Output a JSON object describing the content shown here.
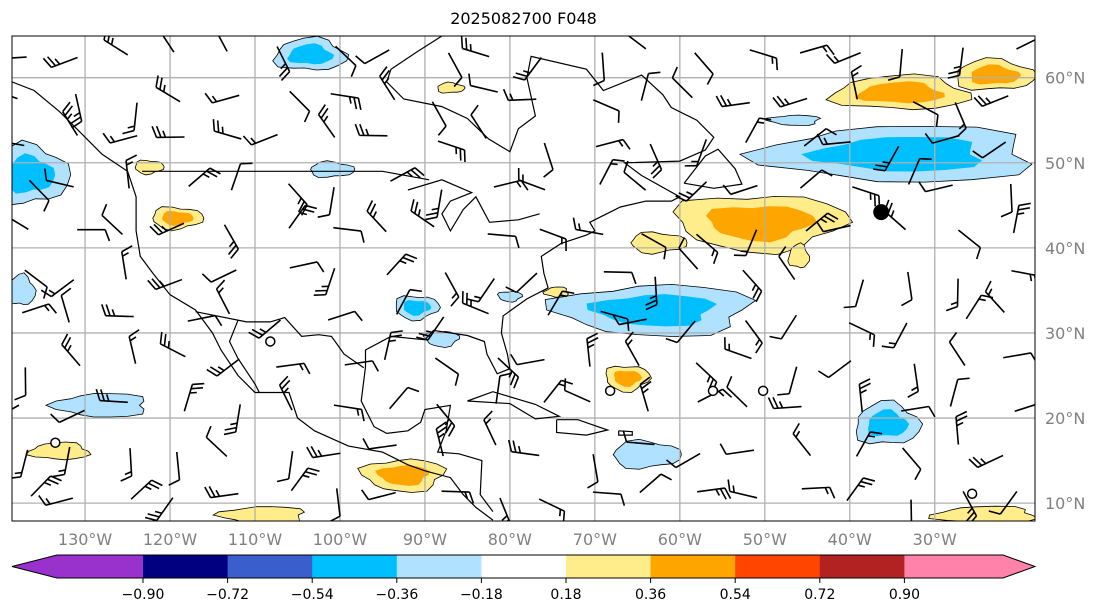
{
  "title": "2025082700 F048",
  "map": {
    "extent": {
      "lon_min": -138.6,
      "lon_max": -18.2,
      "lat_min": 7.9,
      "lat_max": 64.9
    },
    "lon_ticks": [
      {
        "value": -130,
        "label": "130°W"
      },
      {
        "value": -120,
        "label": "120°W"
      },
      {
        "value": -110,
        "label": "110°W"
      },
      {
        "value": -100,
        "label": "100°W"
      },
      {
        "value": -90,
        "label": "90°W"
      },
      {
        "value": -80,
        "label": "80°W"
      },
      {
        "value": -70,
        "label": "70°W"
      },
      {
        "value": -60,
        "label": "60°W"
      },
      {
        "value": -50,
        "label": "50°W"
      },
      {
        "value": -40,
        "label": "40°W"
      },
      {
        "value": -30,
        "label": "30°W"
      }
    ],
    "lat_ticks": [
      {
        "value": 60,
        "label": "60°N"
      },
      {
        "value": 50,
        "label": "50°N"
      },
      {
        "value": 40,
        "label": "40°N"
      },
      {
        "value": 30,
        "label": "30°N"
      },
      {
        "value": 20,
        "label": "20°N"
      },
      {
        "value": 10,
        "label": "10°N"
      }
    ],
    "anomaly_regions": [
      {
        "lon": -103.5,
        "lat": 62.7,
        "rlon": 4.2,
        "rlat": 1.9,
        "level": -0.36,
        "inner": -0.54
      },
      {
        "lon": -136.5,
        "lat": 48.6,
        "rlon": 4.5,
        "rlat": 3.5,
        "level": -0.36,
        "inner": -0.54
      },
      {
        "lon": -119.2,
        "lat": 43.5,
        "rlon": 3.0,
        "rlat": 1.3,
        "level": 0.36,
        "inner": 0.54
      },
      {
        "lon": -50.6,
        "lat": 43.0,
        "rlon": 10.0,
        "rlat": 3.3,
        "level": 0.36,
        "inner": 0.54
      },
      {
        "lon": -63.0,
        "lat": 32.7,
        "rlon": 11.5,
        "rlat": 3.0,
        "level": -0.36,
        "inner": -0.54
      },
      {
        "lon": -34.0,
        "lat": 51.0,
        "rlon": 16.0,
        "rlat": 3.3,
        "level": -0.36,
        "inner": -0.54
      },
      {
        "lon": -34.0,
        "lat": 58.2,
        "rlon": 8.0,
        "rlat": 2.0,
        "level": 0.36,
        "inner": 0.54
      },
      {
        "lon": -23.0,
        "lat": 60.3,
        "rlon": 4.7,
        "rlat": 1.8,
        "level": 0.36,
        "inner": 0.54
      },
      {
        "lon": -62.6,
        "lat": 40.6,
        "rlon": 3.3,
        "rlat": 1.2,
        "level": 0.36,
        "inner": null
      },
      {
        "lon": -66.2,
        "lat": 24.7,
        "rlon": 2.6,
        "rlat": 1.5,
        "level": 0.36,
        "inner": 0.54
      },
      {
        "lon": -92.5,
        "lat": 13.3,
        "rlon": 4.8,
        "rlat": 1.9,
        "level": 0.36,
        "inner": 0.54
      },
      {
        "lon": -128.0,
        "lat": 21.5,
        "rlon": 5.5,
        "rlat": 1.4,
        "level": -0.36,
        "inner": null
      },
      {
        "lon": -133.0,
        "lat": 16.1,
        "rlon": 3.5,
        "rlat": 1.0,
        "level": 0.36,
        "inner": null
      },
      {
        "lon": -35.6,
        "lat": 19.3,
        "rlon": 3.8,
        "rlat": 2.5,
        "level": -0.36,
        "inner": -0.54
      },
      {
        "lon": -64.0,
        "lat": 15.7,
        "rlon": 4.0,
        "rlat": 1.6,
        "level": -0.36,
        "inner": null
      },
      {
        "lon": -91.0,
        "lat": 33.0,
        "rlon": 2.6,
        "rlat": 1.4,
        "level": -0.36,
        "inner": -0.54
      },
      {
        "lon": -88.0,
        "lat": 29.3,
        "rlon": 2.0,
        "rlat": 0.9,
        "level": -0.36,
        "inner": null
      },
      {
        "lon": -109.0,
        "lat": 8.6,
        "rlon": 5.0,
        "rlat": 1.0,
        "level": 0.36,
        "inner": null
      },
      {
        "lon": -24.0,
        "lat": 8.6,
        "rlon": 6.0,
        "rlat": 1.0,
        "level": 0.36,
        "inner": null
      },
      {
        "lon": -137.5,
        "lat": 35.0,
        "rlon": 1.6,
        "rlat": 1.8,
        "level": -0.36,
        "inner": null
      },
      {
        "lon": -101.0,
        "lat": 49.2,
        "rlon": 2.6,
        "rlat": 0.9,
        "level": -0.36,
        "inner": null
      },
      {
        "lon": -122.5,
        "lat": 49.5,
        "rlon": 1.7,
        "rlat": 0.8,
        "level": 0.36,
        "inner": null
      },
      {
        "lon": -80.0,
        "lat": 34.3,
        "rlon": 1.4,
        "rlat": 0.6,
        "level": -0.36,
        "inner": null
      },
      {
        "lon": -46.5,
        "lat": 55.0,
        "rlon": 3.0,
        "rlat": 0.6,
        "level": -0.36,
        "inner": null
      },
      {
        "lon": -74.5,
        "lat": 34.8,
        "rlon": 1.4,
        "rlat": 0.6,
        "level": 0.36,
        "inner": null
      },
      {
        "lon": -46.0,
        "lat": 39.0,
        "rlon": 1.2,
        "rlat": 1.4,
        "level": 0.36,
        "inner": null
      },
      {
        "lon": -87.0,
        "lat": 58.8,
        "rlon": 1.6,
        "rlat": 0.6,
        "level": 0.36,
        "inner": null
      }
    ],
    "markers": [
      {
        "lon": -108.2,
        "lat": 29.0,
        "type": "open"
      },
      {
        "lon": -68.2,
        "lat": 23.2,
        "type": "open"
      },
      {
        "lon": -56.1,
        "lat": 23.2,
        "type": "open"
      },
      {
        "lon": -50.2,
        "lat": 23.2,
        "type": "open"
      },
      {
        "lon": -133.5,
        "lat": 17.1,
        "type": "open"
      },
      {
        "lon": -25.6,
        "lat": 11.1,
        "type": "open"
      },
      {
        "lon": -36.3,
        "lat": 44.2,
        "type": "filled"
      }
    ]
  },
  "colorbar": {
    "levels": [
      "−0.90",
      "−0.72",
      "−0.54",
      "−0.36",
      "−0.18",
      "0.18",
      "0.36",
      "0.54",
      "0.72",
      "0.90"
    ],
    "colors": [
      "#9932cc",
      "#000080",
      "#3a5fcd",
      "#00bfff",
      "#b0e2ff",
      "#ffffff",
      "#ffec8b",
      "#ffa500",
      "#ff4500",
      "#b22222",
      "#ff82ab"
    ]
  }
}
